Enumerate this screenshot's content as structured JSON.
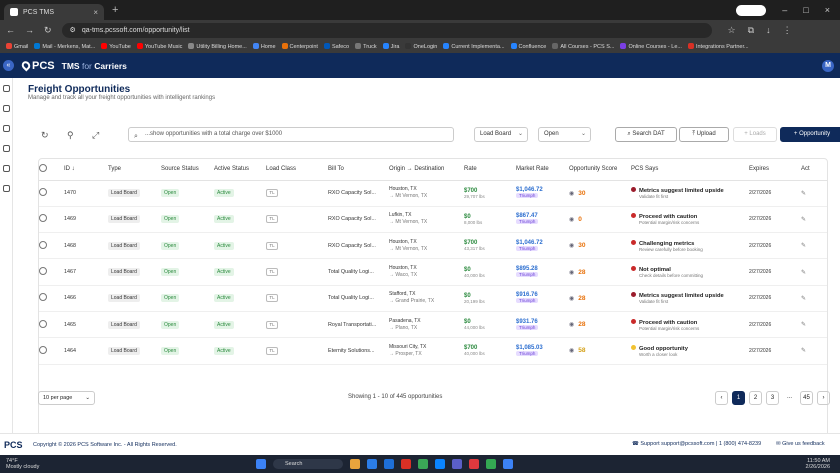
{
  "browser": {
    "tab_title": "PCS TMS",
    "url": "qa-tms.pcssoft.com/opportunity/list",
    "bookmarks": [
      "Gmail",
      "Mail - Merkens, Mat...",
      "YouTube",
      "YouTube Music",
      "Utility Billing Home...",
      "Home",
      "Centerpoint",
      "Safeco",
      "Truck",
      "Jira",
      "OneLogin",
      "Current Implementa...",
      "Confluence",
      "All Courses - PCS S...",
      "Online Courses - Le...",
      "Integrations Partner..."
    ],
    "bookmark_colors": [
      "#ea4335",
      "#0078d4",
      "#ff0000",
      "#ff0000",
      "#888888",
      "#4285f4",
      "#e8710a",
      "#0057b8",
      "#777777",
      "#2684ff",
      "#333333",
      "#2684ff",
      "#2684ff",
      "#666666",
      "#7b3fe4",
      "#d93025"
    ]
  },
  "app": {
    "logo": "PCS",
    "product": "TMS",
    "for": "for",
    "carriers": "Carriers",
    "avatar": "M",
    "menu": "«"
  },
  "page": {
    "title": "Freight Opportunities",
    "subtitle": "Manage and track all your freight opportunities with intelligent rankings"
  },
  "toolbar": {
    "search_placeholder": "...show opportunities with a total charge over $1000",
    "board": "Load Board",
    "status": "Open",
    "search_dat": "Search DAT",
    "upload": "Upload",
    "loads": "Loads",
    "add": "Opportunity"
  },
  "columns": [
    "ID",
    "Type",
    "Source Status",
    "Active Status",
    "Load Class",
    "Bill To",
    "Origin → Destination",
    "Rate",
    "Market Rate",
    "Opportunity Score",
    "PCS Says",
    "Expires",
    "Act"
  ],
  "rows": [
    {
      "id": "1470",
      "type": "Load Board",
      "src": "Open",
      "act": "Active",
      "lc": "TL",
      "bill": "RXO Capacity Sol...",
      "o": "Houston, TX",
      "d": "→ Mt Vernon, TX",
      "rate": "$700",
      "wt": "29,707 lbs",
      "mr": "$1,046.72",
      "tri": "Triumph",
      "score": "30",
      "sc": "#e8710a",
      "dot": "#9b1c2c",
      "say": "Metrics suggest limited upside",
      "say2": "Validate fit first",
      "exp": "2/27/2026"
    },
    {
      "id": "1469",
      "type": "Load Board",
      "src": "Open",
      "act": "Active",
      "lc": "TL",
      "bill": "RXO Capacity Sol...",
      "o": "Lufkin, TX",
      "d": "→ Mt Vernon, TX",
      "rate": "$0",
      "wt": "8,000 lbs",
      "mr": "$867.47",
      "tri": "Triumph",
      "score": "0",
      "sc": "#e8710a",
      "dot": "#c92a2a",
      "say": "Proceed with caution",
      "say2": "Potential margin/risk concerns",
      "exp": "2/27/2026"
    },
    {
      "id": "1468",
      "type": "Load Board",
      "src": "Open",
      "act": "Active",
      "lc": "TL",
      "bill": "RXO Capacity Sol...",
      "o": "Houston, TX",
      "d": "→ Mt Vernon, TX",
      "rate": "$700",
      "wt": "43,317 lbs",
      "mr": "$1,046.72",
      "tri": "Triumph",
      "score": "30",
      "sc": "#e8710a",
      "dot": "#c92a2a",
      "say": "Challenging metrics",
      "say2": "Review carefully before booking",
      "exp": "2/27/2026"
    },
    {
      "id": "1467",
      "type": "Load Board",
      "src": "Open",
      "act": "Active",
      "lc": "TL",
      "bill": "Total Quality Logi...",
      "o": "Houston, TX",
      "d": "→ Waco, TX",
      "rate": "$0",
      "wt": "40,000 lbs",
      "mr": "$895.28",
      "tri": "Triumph",
      "score": "28",
      "sc": "#e8710a",
      "dot": "#c92a2a",
      "say": "Not optimal",
      "say2": "Check details before committing",
      "exp": "2/27/2026"
    },
    {
      "id": "1466",
      "type": "Load Board",
      "src": "Open",
      "act": "Active",
      "lc": "TL",
      "bill": "Total Quality Logi...",
      "o": "Stafford, TX",
      "d": "→ Grand Prairie, TX",
      "rate": "$0",
      "wt": "20,199 lbs",
      "mr": "$916.76",
      "tri": "Triumph",
      "score": "28",
      "sc": "#e8710a",
      "dot": "#9b1c2c",
      "say": "Metrics suggest limited upside",
      "say2": "Validate fit first",
      "exp": "2/27/2026"
    },
    {
      "id": "1465",
      "type": "Load Board",
      "src": "Open",
      "act": "Active",
      "lc": "TL",
      "bill": "Royal Transportati...",
      "o": "Pasadena, TX",
      "d": "→ Plano, TX",
      "rate": "$0",
      "wt": "44,000 lbs",
      "mr": "$931.76",
      "tri": "Triumph",
      "score": "28",
      "sc": "#e8710a",
      "dot": "#c92a2a",
      "say": "Proceed with caution",
      "say2": "Potential margin/risk concerns",
      "exp": "2/27/2026"
    },
    {
      "id": "1464",
      "type": "Load Board",
      "src": "Open",
      "act": "Active",
      "lc": "TL",
      "bill": "Eternity Solutions...",
      "o": "Missouri City, TX",
      "d": "→ Prosper, TX",
      "rate": "$700",
      "wt": "40,000 lbs",
      "mr": "$1,085.03",
      "tri": "Triumph",
      "score": "58",
      "sc": "#d4a017",
      "dot": "#f1c232",
      "say": "Good opportunity",
      "say2": "Worth a closer look",
      "exp": "2/27/2026"
    }
  ],
  "footer": {
    "per_page": "10 per page",
    "showing": "Showing 1 - 10 of 445 opportunities",
    "pages": [
      "1",
      "2",
      "3",
      "...",
      "45"
    ]
  },
  "copyright": {
    "logo": "PCS",
    "text": "Copyright © 2026 PCS Software Inc. - All Rights Reserved.",
    "support": "Support support@pcssoft.com | 1 (800) 474-8239",
    "feedback": "Give us feedback"
  },
  "taskbar": {
    "temp": "74°F",
    "weather": "Mostly cloudy",
    "search": "Search",
    "time": "11:50 AM",
    "date": "2/26/2026",
    "app_colors": [
      "#3c82f6",
      "#555555",
      "#e8a33d",
      "#2b7de9",
      "#1e6fd9",
      "#d93025",
      "#3aa757",
      "#0a84ff",
      "#5b5fc7",
      "#e0393e",
      "#34a853",
      "#3c82f6"
    ]
  }
}
